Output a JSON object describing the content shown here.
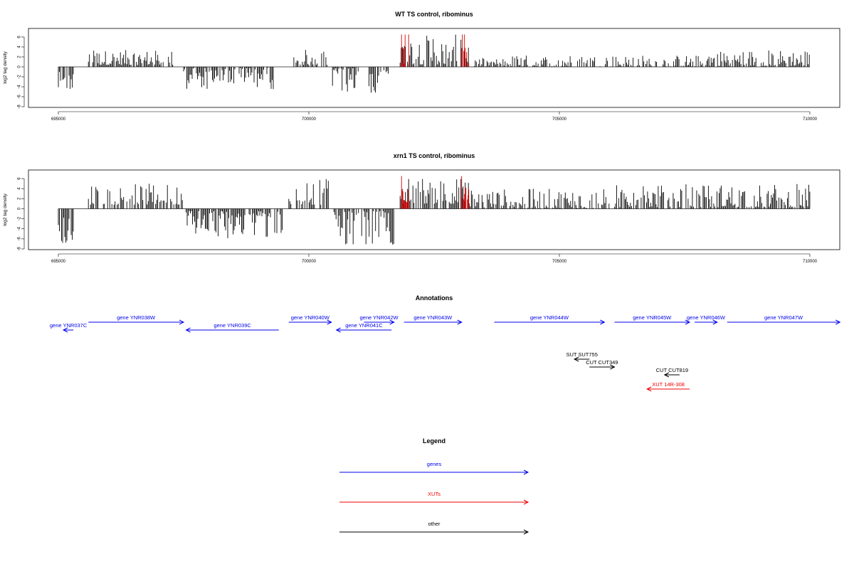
{
  "chart_data": [
    {
      "type": "bar",
      "title": "WT TS control, ribominus",
      "ylabel": "log2 tag density",
      "xlim": [
        695000,
        710000
      ],
      "ylim": [
        -8,
        7
      ],
      "yticks": [
        6,
        4,
        2,
        0,
        -2,
        -4,
        -6,
        -8
      ],
      "xticks": [
        695000,
        700000,
        705000,
        710000
      ],
      "series": [
        {
          "color": "#000000",
          "segments": [
            {
              "from": 695000,
              "to": 695300,
              "min": -4.5,
              "max": -1.0,
              "sign": -1
            },
            {
              "from": 695600,
              "to": 697300,
              "min": 0.4,
              "max": 3.4,
              "sign": 1
            },
            {
              "from": 697500,
              "to": 699300,
              "min": 0.2,
              "max": 4.6,
              "sign": -1
            },
            {
              "from": 699700,
              "to": 700400,
              "min": 0.4,
              "max": 3.5,
              "sign": 1
            },
            {
              "from": 700450,
              "to": 701000,
              "min": 0.3,
              "max": 5.3,
              "sign": -1
            },
            {
              "from": 701200,
              "to": 701600,
              "min": 0.5,
              "max": 5.5,
              "sign": -1
            },
            {
              "from": 701800,
              "to": 703200,
              "min": 0.5,
              "max": 6.5,
              "sign": 1
            },
            {
              "from": 703300,
              "to": 704000,
              "min": 0.1,
              "max": 1.8,
              "sign": 1
            },
            {
              "from": 704000,
              "to": 707900,
              "min": 0.0,
              "max": 2.4,
              "sign": 1
            },
            {
              "from": 707900,
              "to": 710000,
              "min": 0.2,
              "max": 3.5,
              "sign": 1
            }
          ]
        },
        {
          "color": "#cc0000",
          "segments": [
            {
              "from": 701850,
              "to": 702000,
              "min": 0.5,
              "max": 6.5,
              "sign": 1
            },
            {
              "from": 703050,
              "to": 703200,
              "min": 0.5,
              "max": 6.5,
              "sign": 1
            }
          ]
        }
      ]
    },
    {
      "type": "bar",
      "title": "xrn1 TS control, ribominus",
      "ylabel": "log2 tag density",
      "xlim": [
        695000,
        710000
      ],
      "ylim": [
        -8,
        7
      ],
      "yticks": [
        6,
        4,
        2,
        0,
        -2,
        -4,
        -6,
        -8
      ],
      "xticks": [
        695000,
        700000,
        705000,
        710000
      ],
      "series": [
        {
          "color": "#000000",
          "segments": [
            {
              "from": 695000,
              "to": 695300,
              "min": -6.8,
              "max": -1.5,
              "sign": -1
            },
            {
              "from": 695600,
              "to": 697500,
              "min": 0.8,
              "max": 5.0,
              "sign": 1
            },
            {
              "from": 697550,
              "to": 699500,
              "min": 0.5,
              "max": 6.0,
              "sign": -1
            },
            {
              "from": 699600,
              "to": 700400,
              "min": 0.8,
              "max": 6.0,
              "sign": 1
            },
            {
              "from": 700500,
              "to": 701700,
              "min": 0.5,
              "max": 7.5,
              "sign": -1
            },
            {
              "from": 701800,
              "to": 703200,
              "min": 1.0,
              "max": 6.5,
              "sign": 1
            },
            {
              "from": 703200,
              "to": 706000,
              "min": 0.1,
              "max": 4.0,
              "sign": 1
            },
            {
              "from": 706100,
              "to": 710000,
              "min": 0.3,
              "max": 5.0,
              "sign": 1
            }
          ]
        },
        {
          "color": "#cc0000",
          "segments": [
            {
              "from": 701850,
              "to": 702000,
              "min": 1.0,
              "max": 6.5,
              "sign": 1
            },
            {
              "from": 703050,
              "to": 703200,
              "min": 1.0,
              "max": 6.5,
              "sign": 1
            }
          ]
        }
      ]
    }
  ],
  "annotations": {
    "title": "Annotations",
    "colors": {
      "genes": "#0000ee",
      "XUTs": "#ee0000",
      "other": "#000000"
    },
    "features": [
      {
        "label": "gene YNR037C",
        "start": 695100,
        "end": 695300,
        "strand": "-",
        "type": "genes",
        "row": 1
      },
      {
        "label": "gene YNR038W",
        "start": 695600,
        "end": 697500,
        "strand": "+",
        "type": "genes",
        "row": 0
      },
      {
        "label": "gene YNR039C",
        "start": 697550,
        "end": 699400,
        "strand": "-",
        "type": "genes",
        "row": 1
      },
      {
        "label": "gene YNR040W",
        "start": 699600,
        "end": 700450,
        "strand": "+",
        "type": "genes",
        "row": 0
      },
      {
        "label": "gene YNR041C",
        "start": 700550,
        "end": 701650,
        "strand": "-",
        "type": "genes",
        "row": 1
      },
      {
        "label": "gene YNR042W",
        "start": 701100,
        "end": 701700,
        "strand": "+",
        "type": "genes",
        "row": 0
      },
      {
        "label": "gene YNR043W",
        "start": 701900,
        "end": 703050,
        "strand": "+",
        "type": "genes",
        "row": 0
      },
      {
        "label": "gene YNR044W",
        "start": 703700,
        "end": 705900,
        "strand": "+",
        "type": "genes",
        "row": 0
      },
      {
        "label": "gene YNR045W",
        "start": 706100,
        "end": 707600,
        "strand": "+",
        "type": "genes",
        "row": 0
      },
      {
        "label": "gene YNR046W",
        "start": 707700,
        "end": 708150,
        "strand": "+",
        "type": "genes",
        "row": 0
      },
      {
        "label": "gene YNR047W",
        "start": 708350,
        "end": 710600,
        "strand": "+",
        "type": "genes",
        "row": 0
      },
      {
        "label": "SUT SUT755",
        "start": 705300,
        "end": 705600,
        "strand": "-",
        "type": "other",
        "row": 3
      },
      {
        "label": "CUT CUT349",
        "start": 705600,
        "end": 706100,
        "strand": "+",
        "type": "other",
        "row": 4
      },
      {
        "label": "CUT CUT819",
        "start": 707100,
        "end": 707400,
        "strand": "-",
        "type": "other",
        "row": 5
      },
      {
        "label": "XUT 14R-308",
        "start": 706750,
        "end": 707600,
        "strand": "-",
        "type": "XUTs",
        "row": 6
      }
    ]
  },
  "legend": {
    "title": "Legend",
    "items": [
      {
        "label": "genes",
        "color": "#0000ee"
      },
      {
        "label": "XUTs",
        "color": "#ee0000"
      },
      {
        "label": "other",
        "color": "#000000"
      }
    ]
  }
}
